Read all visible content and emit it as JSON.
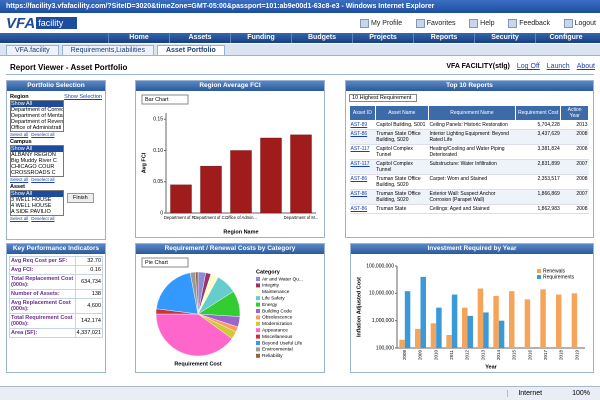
{
  "window": {
    "title": "https://facility3.vfafacility.com/?SiteID=3020&timeZone=GMT-05:00&passport=101:ab9e00d1-63c8-e3 - Windows Internet Explorer",
    "status": "Internet",
    "zoom": "100%"
  },
  "header": {
    "logo": "VFA",
    "logo_sub": "facility",
    "links": [
      "My Profile",
      "Favorites",
      "Help",
      "Feedback",
      "Logout"
    ],
    "nav": [
      "Home",
      "Assets",
      "Funding",
      "Budgets",
      "Projects",
      "Reports",
      "Security",
      "Configure"
    ]
  },
  "tabs": [
    "VFA.facility",
    "Requirements,Liabilities",
    "Asset Portfolio"
  ],
  "report": {
    "title": "Report Viewer - Asset Portfolio",
    "user": "VFA FACILITY(stlg)",
    "links": [
      "Log Off",
      "Launch",
      "About"
    ]
  },
  "portfolio": {
    "title": "Portfolio Selection",
    "show_selection": "Show Selection",
    "select_all": "Select all",
    "deselect_all": "Deselect all",
    "finish": "Finish",
    "groups": [
      {
        "label": "Region",
        "items": [
          "Show All",
          "Department of Correct",
          "Department of Mental",
          "Department of Reven",
          "Office of Administrati"
        ]
      },
      {
        "label": "Campus",
        "items": [
          "Show All",
          "ALBANY REGION",
          "Big Muddy River C",
          "CHICAGO COUR",
          "CROSSROADS C"
        ]
      },
      {
        "label": "Asset",
        "items": [
          "Show All",
          "3 WELL HOUSE",
          "4 WELL HOUSE",
          "A SIDE PAVILIO"
        ]
      }
    ]
  },
  "kpi": {
    "title": "Key Performance Indicators",
    "rows": [
      [
        "Avg Req Cost per SF:",
        "32.70"
      ],
      [
        "Avg FCI:",
        "0.16"
      ],
      [
        "Total Replacement Cost (000s):",
        "634,734"
      ],
      [
        "Number of Assets:",
        "138"
      ],
      [
        "Avg Replacement Cost (000s):",
        "4,600"
      ],
      [
        "Total Requirement Cost (000s):",
        "142,174"
      ],
      [
        "Area (SF):",
        "4,337,021"
      ]
    ]
  },
  "top10": {
    "title": "Top 10 Reports",
    "dropdown": "10 Highest Requirement",
    "columns": [
      "Asset ID",
      "Asset Name",
      "Requirement Name",
      "Requirement Cost",
      "Action Year"
    ],
    "rows": [
      [
        "AST-89",
        "Capitol Building, S001",
        "Ceiling Panels: Historic Restoration",
        "5,704,228",
        "2013"
      ],
      [
        "AST-86",
        "Truman State Office Building, S020",
        "Interior Lighting Equipment: Beyond Rated Life",
        "3,437,629",
        "2008"
      ],
      [
        "AST-117",
        "Capitol Complex Tunnel",
        "Heating/Cooling and Water Piping Deteriorated",
        "3,381,824",
        "2008"
      ],
      [
        "AST-117",
        "Capitol Complex Tunnel",
        "Substructure: Water Infiltration",
        "2,831,899",
        "2007"
      ],
      [
        "AST-86",
        "Truman State Office Building, S020",
        "Carpet: Worn and Stained",
        "2,353,517",
        "2008"
      ],
      [
        "AST-86",
        "Truman State Office Building, S020",
        "Exterior Wall: Suspect Anchor Corrosion (Parapet Wall)",
        "1,866,869",
        "2007"
      ],
      [
        "AST-86",
        "Truman State",
        "Ceilings: Aged and Stained",
        "1,862,983",
        "2008"
      ]
    ]
  },
  "chart_data": [
    {
      "type": "bar",
      "title": "Region Average FCI",
      "dropdown": "Bar Chart",
      "y_label": "Avg FCI",
      "x_label": "Region Name",
      "categories": [
        "Department of R...",
        "Department of C...",
        "Office of Admin...",
        null,
        "Department of M..."
      ],
      "values": [
        0.045,
        0.075,
        0.1,
        0.12,
        0.125
      ],
      "color": "#a01c1c",
      "ylim": [
        0,
        0.16
      ],
      "yticks": [
        0,
        0.05,
        {
          "value": 0.1,
          "label": "0.10"
        },
        0.15
      ]
    },
    {
      "type": "pie",
      "title": "Requirement / Renewal Costs by Category",
      "dropdown": "Pie Chart",
      "legend_title": "Category",
      "x_label": "Requirement Cost",
      "categories": [
        "Air and Water Qu...",
        "Integrity",
        "Maintenance",
        "Life Safety",
        "Energy",
        "Building Code",
        "Obsolescence",
        "Modernization",
        "Appearance",
        "Miscellaneous",
        "Beyond Useful Life",
        "Environmental",
        "Reliability"
      ],
      "values": [
        3,
        2,
        3,
        8,
        10,
        4,
        2,
        3,
        40,
        2,
        20,
        2,
        1
      ],
      "colors": [
        "#8c8cd9",
        "#993366",
        "#ffffcc",
        "#66cccc",
        "#33cc33",
        "#9966cc",
        "#ff9966",
        "#cccc33",
        "#ff66cc",
        "#cc3333",
        "#3399ff",
        "#999999",
        "#996633"
      ]
    },
    {
      "type": "bar",
      "title": "Investment Required by Year",
      "y_label": "Inflation Adjusted Cost",
      "x_label": "Year",
      "log": true,
      "legend": "top-right",
      "ylim": [
        100000,
        100000000
      ],
      "yticks": [
        {
          "value": 100000,
          "label": "100,000"
        },
        {
          "value": 1000000,
          "label": "1,000,000"
        },
        {
          "value": 10000000,
          "label": "10,000,000"
        },
        {
          "value": 100000000,
          "label": "100,000,000"
        }
      ],
      "categories": [
        "2008",
        "2009",
        "2010",
        "2011",
        "2012",
        "2013",
        "2014",
        "2015",
        "2016",
        "2017",
        "2018",
        "2019"
      ],
      "series": [
        {
          "name": "Renewals",
          "color": "#f5a55a",
          "values": [
            200000,
            500000,
            800000,
            300000,
            3000000,
            15000000,
            8000000,
            12000000,
            6000000,
            14000000,
            9000000,
            10000000
          ]
        },
        {
          "name": "Requirements",
          "color": "#3a9ad9",
          "values": [
            12000000,
            40000000,
            3000000,
            9000000,
            1500000,
            2000000,
            1000000,
            null,
            null,
            null,
            null,
            null
          ]
        }
      ]
    }
  ]
}
